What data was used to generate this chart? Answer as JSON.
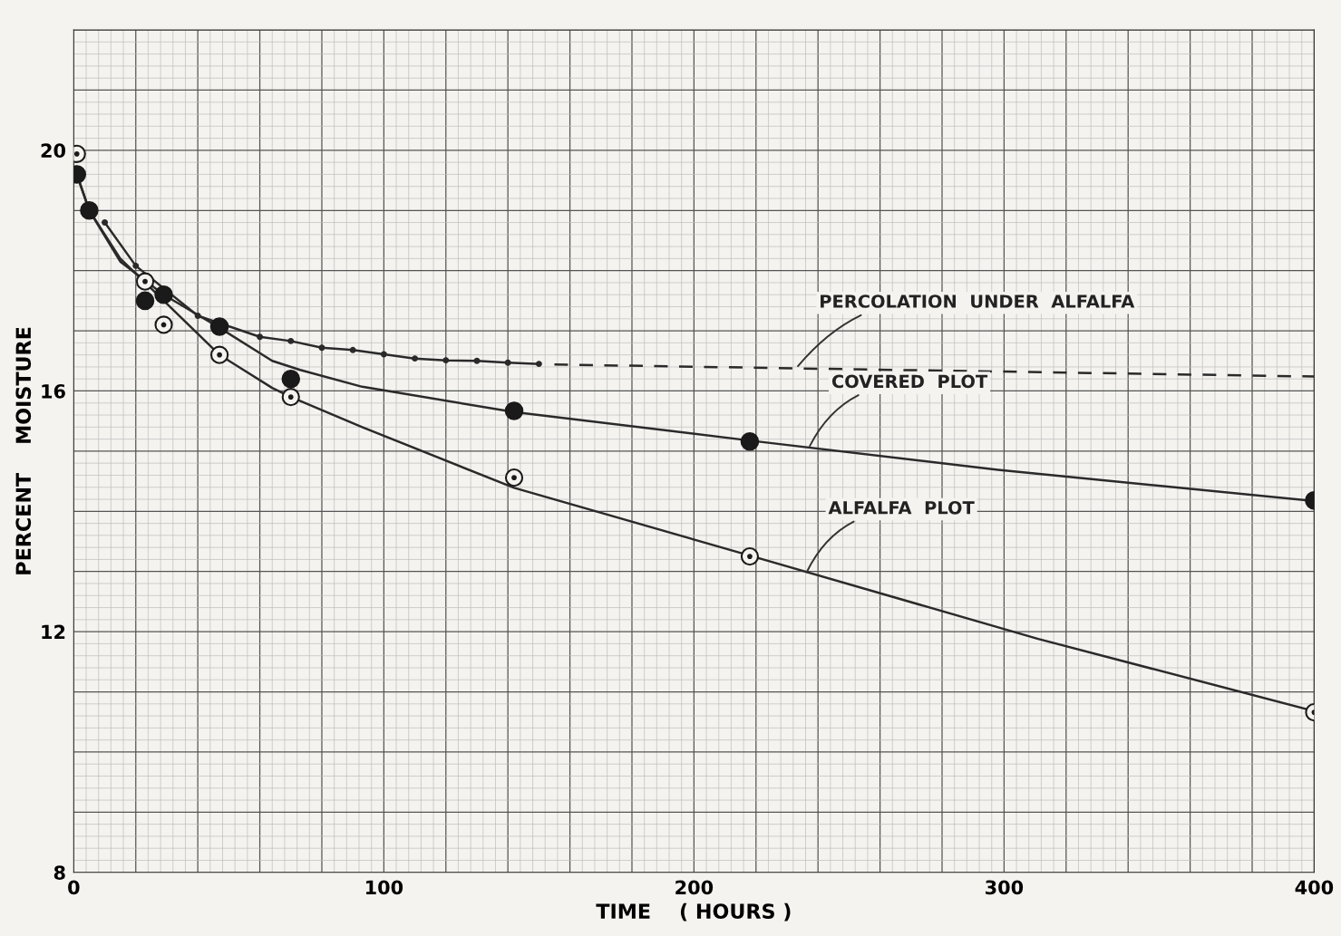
{
  "chart_data": {
    "type": "line",
    "xlabel": "TIME    ( HOURS )",
    "ylabel": "PERCENT    MOISTURE",
    "xlim": [
      0,
      400
    ],
    "ylim": [
      8,
      22
    ],
    "xticks": [
      0,
      {
        "value": 20,
        "label": null
      },
      {
        "value": 40,
        "label": null
      },
      {
        "value": 60,
        "label": null
      },
      {
        "value": 80,
        "label": null
      },
      100,
      {
        "value": 120,
        "label": null
      },
      {
        "value": 140,
        "label": null
      },
      {
        "value": 160,
        "label": null
      },
      {
        "value": 180,
        "label": null
      },
      200,
      {
        "value": 220,
        "label": null
      },
      {
        "value": 240,
        "label": null
      },
      {
        "value": 260,
        "label": null
      },
      {
        "value": 280,
        "label": null
      },
      300,
      {
        "value": 320,
        "label": null
      },
      {
        "value": 340,
        "label": null
      },
      {
        "value": 360,
        "label": null
      },
      {
        "value": 380,
        "label": null
      },
      400
    ],
    "yticks": [
      8,
      {
        "value": 9,
        "label": null
      },
      {
        "value": 10,
        "label": null
      },
      {
        "value": 11,
        "label": null
      },
      12,
      {
        "value": 13,
        "label": null
      },
      {
        "value": 14,
        "label": null
      },
      {
        "value": 15,
        "label": null
      },
      16,
      {
        "value": 17,
        "label": null
      },
      {
        "value": 18,
        "label": null
      },
      {
        "value": 19,
        "label": null
      },
      20,
      {
        "value": 21,
        "label": null
      },
      {
        "value": 22,
        "label": null
      }
    ],
    "grid": true,
    "series": [
      {
        "color": "#2a2a2a",
        "marker": "none",
        "x": [
          1,
          5,
          15,
          29,
          47,
          64,
          73,
          93,
          142,
          219,
          298,
          400
        ],
        "values": [
          19.6,
          19.0,
          18.15,
          17.6,
          17.05,
          16.5,
          16.35,
          16.07,
          15.65,
          15.17,
          14.69,
          14.17
        ]
      },
      {
        "color": "#2a2a2a",
        "marker": "none",
        "x": [
          1,
          5,
          15,
          23,
          47,
          64,
          70,
          93,
          142,
          219,
          311,
          400
        ],
        "values": [
          19.6,
          19.0,
          18.2,
          17.8,
          16.6,
          16.05,
          15.9,
          15.4,
          14.39,
          13.25,
          11.88,
          10.68
        ]
      },
      {
        "color": "#2a2a2a",
        "marker": "circle",
        "x": [
          10,
          20,
          40,
          60,
          70,
          80,
          90,
          100,
          110,
          120,
          130,
          140,
          150
        ],
        "values": [
          18.8,
          18.08,
          17.25,
          16.9,
          16.83,
          16.72,
          16.68,
          16.61,
          16.54,
          16.51,
          16.5,
          16.47,
          16.45
        ]
      },
      {
        "color": "#2a2a2a",
        "marker": "none",
        "line_style": "dashed",
        "x": [
          155,
          400
        ],
        "values": [
          16.44,
          16.24
        ]
      },
      {
        "type": "scatter",
        "color": "#1a1a1a",
        "marker": "circle",
        "x": [
          1,
          5,
          23,
          29,
          47,
          70,
          142,
          218,
          400
        ],
        "values": [
          19.6,
          19.0,
          17.5,
          17.6,
          17.07,
          16.2,
          15.67,
          15.16,
          14.18
        ]
      },
      {
        "type": "scatter",
        "color": "#1a1a1a",
        "marker": "circle_open",
        "x": [
          1,
          23,
          29,
          47,
          70,
          142,
          218,
          400
        ],
        "values": [
          19.94,
          17.82,
          17.1,
          16.6,
          15.9,
          14.56,
          13.25,
          10.66
        ]
      }
    ],
    "annotations": [
      {
        "text": "PERCOLATION  UNDER  ALFALFA",
        "x": 233,
        "y": 16.38
      },
      {
        "text": "COVERED  PLOT",
        "x": 237,
        "y": 15.05
      },
      {
        "text": "ALFALFA  PLOT",
        "x": 236,
        "y": 12.95
      }
    ]
  }
}
